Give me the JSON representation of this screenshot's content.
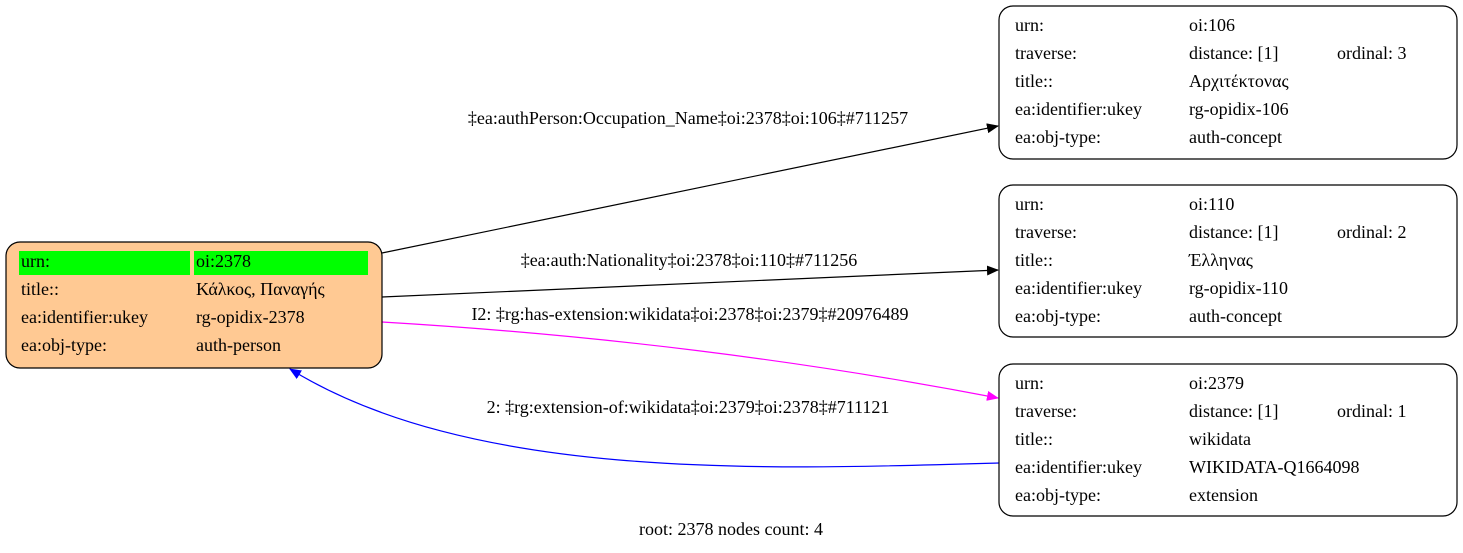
{
  "nodes": [
    {
      "rows": [
        [
          "urn:",
          "oi:2378"
        ],
        [
          "title::",
          "Κάλκος, Παναγής"
        ],
        [
          "ea:identifier:ukey",
          "rg-opidix-2378"
        ],
        [
          "ea:obj-type:",
          "auth-person"
        ]
      ]
    },
    {
      "rows": [
        [
          "urn:",
          "oi:106"
        ],
        [
          "traverse:",
          "distance: [1]",
          "ordinal: 3"
        ],
        [
          "title::",
          "Αρχιτέκτονας"
        ],
        [
          "ea:identifier:ukey",
          "rg-opidix-106"
        ],
        [
          "ea:obj-type:",
          "auth-concept"
        ]
      ]
    },
    {
      "rows": [
        [
          "urn:",
          "oi:110"
        ],
        [
          "traverse:",
          "distance: [1]",
          "ordinal: 2"
        ],
        [
          "title::",
          "Έλληνας"
        ],
        [
          "ea:identifier:ukey",
          "rg-opidix-110"
        ],
        [
          "ea:obj-type:",
          "auth-concept"
        ]
      ]
    },
    {
      "rows": [
        [
          "urn:",
          "oi:2379"
        ],
        [
          "traverse:",
          "distance: [1]",
          "ordinal: 1"
        ],
        [
          "title::",
          "wikidata"
        ],
        [
          "ea:identifier:ukey",
          "WIKIDATA-Q1664098"
        ],
        [
          "ea:obj-type:",
          "extension"
        ]
      ]
    }
  ],
  "edges": [
    {
      "label": "‡ea:authPerson:Occupation_Name‡oi:2378‡oi:106‡#711257"
    },
    {
      "label": "‡ea:auth:Nationality‡oi:2378‡oi:110‡#711256"
    },
    {
      "label": "I2: ‡rg:has-extension:wikidata‡oi:2378‡oi:2379‡#20976489"
    },
    {
      "label": "2: ‡rg:extension-of:wikidata‡oi:2379‡oi:2378‡#711121"
    }
  ],
  "footer": "root: 2378 nodes count: 4"
}
